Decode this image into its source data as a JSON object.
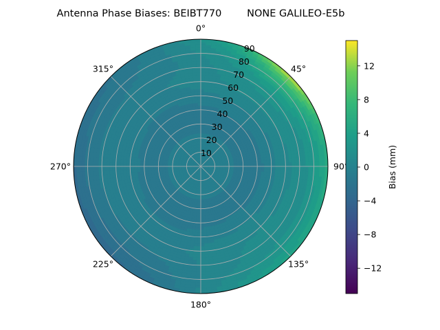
{
  "chart_data": {
    "type": "heatmap",
    "projection": "polar",
    "title": "Antenna Phase Biases: BEIBT770        NONE GALILEO-E5b",
    "angle_ticks": [
      {
        "deg": 0,
        "label": "0°"
      },
      {
        "deg": 45,
        "label": "45°"
      },
      {
        "deg": 90,
        "label": "90°"
      },
      {
        "deg": 135,
        "label": "135°"
      },
      {
        "deg": 180,
        "label": "180°"
      },
      {
        "deg": 225,
        "label": "225°"
      },
      {
        "deg": 270,
        "label": "270°"
      },
      {
        "deg": 315,
        "label": "315°"
      }
    ],
    "radial_ticks": [
      "10",
      "20",
      "30",
      "40",
      "50",
      "60",
      "70",
      "80",
      "90"
    ],
    "radial_range": [
      0,
      90
    ],
    "grid": true,
    "colorbar": {
      "label": "Bias (mm)",
      "range": [
        -15,
        15
      ],
      "ticks": [
        "12",
        "8",
        "4",
        "0",
        "−4",
        "−8",
        "−12"
      ],
      "tick_values": [
        12,
        8,
        4,
        0,
        -4,
        -8,
        -12
      ],
      "colormap": "viridis",
      "levels": 30
    },
    "field_description_values": {
      "center_zenith_mm": -0.3,
      "high_elevation_ring_mm": -1.5,
      "mid_ring_60_mm": 0.5,
      "edge_northeast_mm": 10,
      "edge_south_mm": 4,
      "edge_west_mm": -3.5
    }
  }
}
